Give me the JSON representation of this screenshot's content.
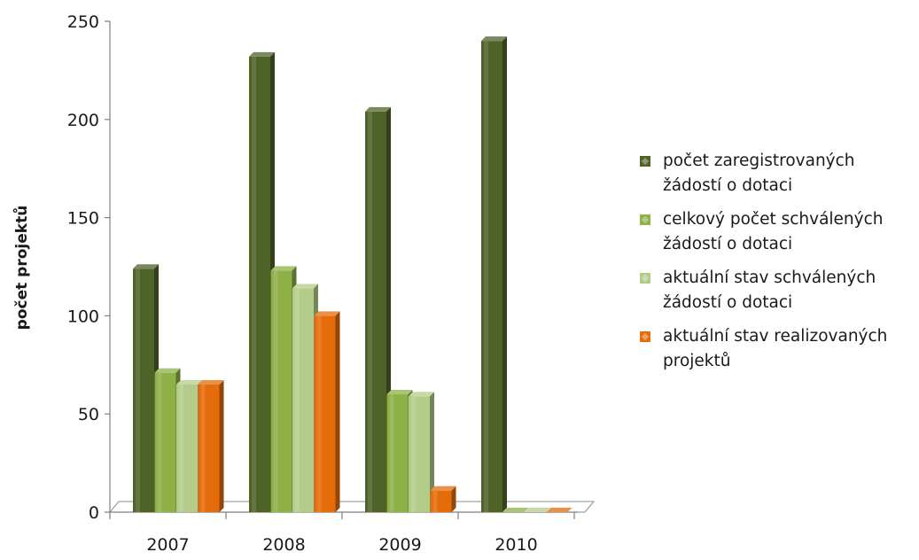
{
  "chart_data": {
    "type": "bar",
    "title": "",
    "xlabel": "",
    "ylabel": "počet projektů",
    "categories": [
      "2007",
      "2008",
      "2009",
      "2010"
    ],
    "ylim": [
      0,
      250
    ],
    "yticks": [
      0,
      50,
      100,
      150,
      200,
      250
    ],
    "grid": false,
    "legend_position": "right",
    "three_d": true,
    "series": [
      {
        "name": "počet zaregistrovaných žádostí o dotaci",
        "color": "#4f6228",
        "values": [
          124,
          232,
          204,
          240
        ]
      },
      {
        "name": "celkový počet schválených žádostí o dotaci",
        "color": "#8db047",
        "values": [
          71,
          123,
          60,
          0
        ]
      },
      {
        "name": "aktuální stav schválených žádostí o dotaci",
        "color": "#b3cc8a",
        "values": [
          65,
          114,
          59,
          0
        ]
      },
      {
        "name": "aktuální stav realizovaných projektů",
        "color": "#e46c0a",
        "values": [
          65,
          100,
          11,
          0
        ]
      }
    ]
  }
}
